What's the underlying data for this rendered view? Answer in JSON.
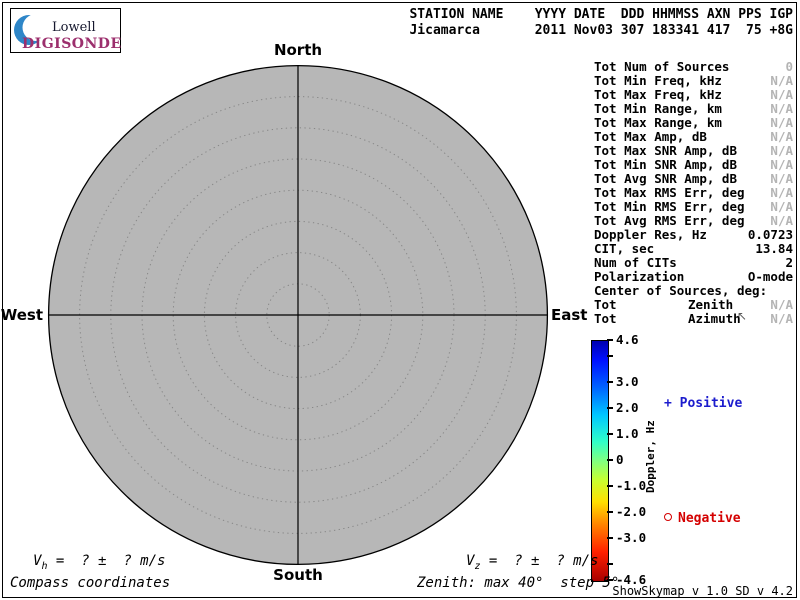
{
  "logo": {
    "lowell": "Lowell",
    "digisonde": "DIGISONDE"
  },
  "header": {
    "line1": "STATION NAME    YYYY DATE  DDD HHMMSS AXN PPS IGP",
    "line2": "Jicamarca       2011 Nov03 307 183341 417  75 +8G"
  },
  "station": {
    "name": "Jicamarca",
    "yyyy": "2011",
    "date": "Nov03",
    "ddd": "307",
    "hhmmss": "183341",
    "axn": "417",
    "pps": "75",
    "igp": "+8G"
  },
  "compass": {
    "north": "North",
    "south": "South",
    "east": "East",
    "west": "West"
  },
  "stats": {
    "rows": [
      {
        "label": "Tot Num of Sources",
        "value": "0",
        "dim": true
      },
      {
        "label": "Tot Min Freq, kHz",
        "value": "N/A",
        "dim": true
      },
      {
        "label": "Tot Max Freq, kHz",
        "value": "N/A",
        "dim": true
      },
      {
        "label": "Tot Min Range, km",
        "value": "N/A",
        "dim": true
      },
      {
        "label": "Tot Max Range, km",
        "value": "N/A",
        "dim": true
      },
      {
        "label": "Tot Max Amp, dB",
        "value": "N/A",
        "dim": true
      },
      {
        "label": "Tot Max SNR Amp, dB",
        "value": "N/A",
        "dim": true
      },
      {
        "label": "Tot Min SNR Amp, dB",
        "value": "N/A",
        "dim": true
      },
      {
        "label": "Tot Avg SNR Amp, dB",
        "value": "N/A",
        "dim": true
      },
      {
        "label": "Tot Max RMS Err, deg",
        "value": "N/A",
        "dim": true
      },
      {
        "label": "Tot Min RMS Err, deg",
        "value": "N/A",
        "dim": true
      },
      {
        "label": "Tot Avg RMS Err, deg",
        "value": "N/A",
        "dim": true
      },
      {
        "label": "Doppler Res, Hz",
        "value": "0.0723",
        "dim": false
      },
      {
        "label": "CIT, sec",
        "value": "13.84",
        "dim": false
      },
      {
        "label": "Num of CITs",
        "value": "2",
        "dim": false
      },
      {
        "label": "Polarization",
        "value": "O-mode",
        "dim": false
      },
      {
        "label": "Center of Sources, deg:",
        "value": "",
        "dim": false
      },
      {
        "label": "Tot",
        "mid": "Zenith",
        "value": "N/A",
        "dim": true
      },
      {
        "label": "Tot",
        "mid": "Azimuth",
        "value": "N/A",
        "dim": true
      }
    ]
  },
  "colorbar": {
    "title": "Doppler, Hz",
    "max": 4.6,
    "min": -4.6,
    "ticks": [
      {
        "v": 4.6,
        "label": "4.6"
      },
      {
        "v": 4.0,
        "label": ""
      },
      {
        "v": 3.0,
        "label": "3.0"
      },
      {
        "v": 2.0,
        "label": "2.0"
      },
      {
        "v": 1.0,
        "label": "1.0"
      },
      {
        "v": 0,
        "label": "0"
      },
      {
        "v": -1.0,
        "label": "-1.0"
      },
      {
        "v": -2.0,
        "label": "-2.0"
      },
      {
        "v": -3.0,
        "label": "-3.0"
      },
      {
        "v": -4.0,
        "label": ""
      },
      {
        "v": -4.6,
        "label": "-4.6"
      }
    ],
    "positive_label": "Positive",
    "positive_marker": "+",
    "negative_label": "Negative",
    "positive_color": "#1c1ccd",
    "negative_color": "#d40000"
  },
  "chart_data": {
    "type": "polar-skymap",
    "coordinates": "Compass coordinates",
    "max_zenith_deg": 40,
    "zenith_step_deg": 5,
    "doppler_range_hz": [
      -4.6,
      4.6
    ],
    "sources": []
  },
  "footer": {
    "velocity_h": {
      "v": "V",
      "sub": "h",
      "rest": " =  ? ±  ? m/s"
    },
    "velocity_z": {
      "v": "V",
      "sub": "z",
      "rest": " =  ? ±  ? m/s"
    },
    "coords_note": "Compass coordinates",
    "zenith_note": "Zenith: max 40°  step 5°",
    "version": "ShowSkymap v 1.0  SD v 4.2"
  },
  "cursor_glyph": "↖"
}
